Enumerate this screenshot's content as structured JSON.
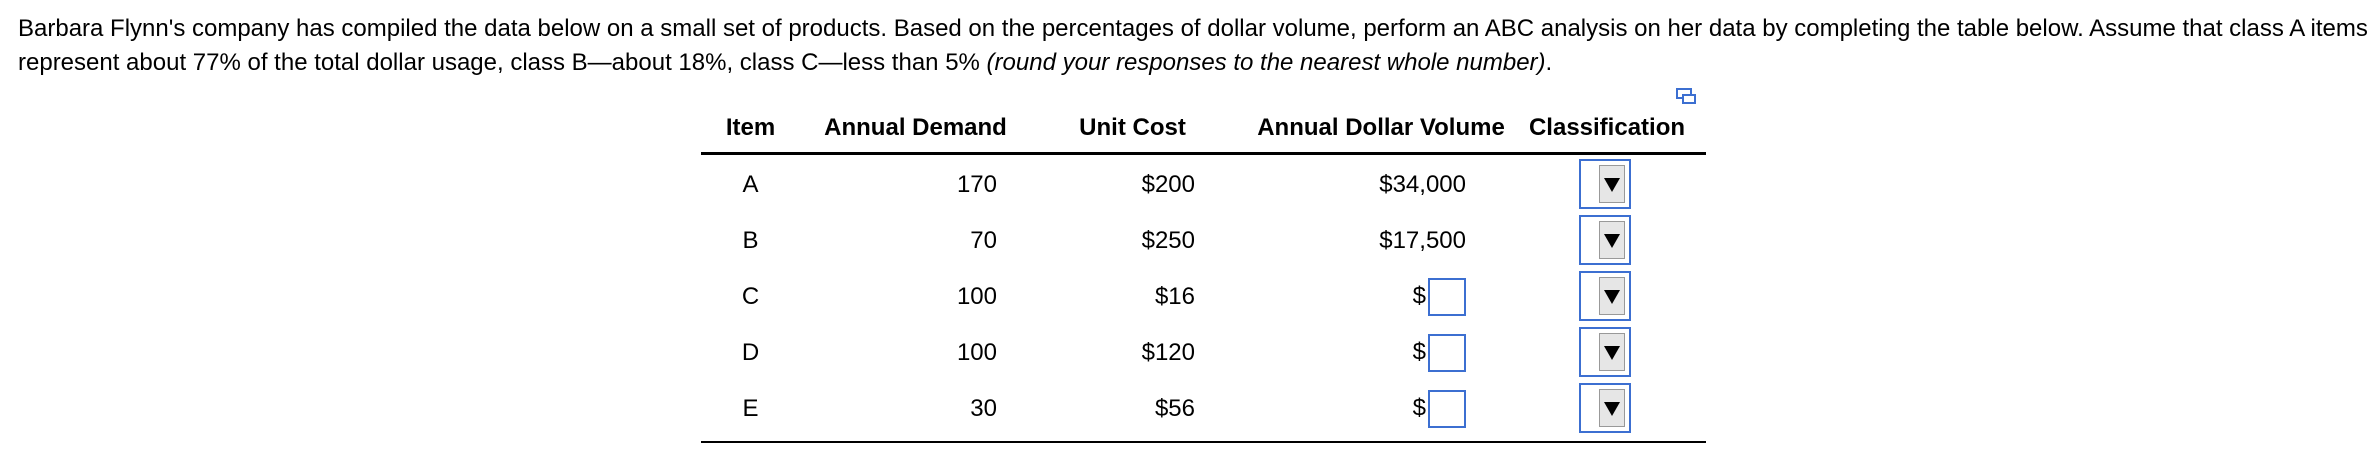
{
  "prompt": {
    "text": "Barbara Flynn's company has compiled the data below on a small set of products. Based on the percentages of dollar volume, perform an ABC analysis on her data by completing the table below. Assume that class A items represent about 77% of the total dollar usage, class B—about 18%, class C—less than 5% ",
    "italic": "(round your responses to the nearest whole number)",
    "end": "."
  },
  "table": {
    "headers": [
      "Item",
      "Annual Demand",
      "Unit Cost",
      "Annual Dollar Volume",
      "Classification"
    ],
    "rows": [
      [
        "A",
        "170",
        "$200",
        "$34,000"
      ],
      [
        "B",
        "70",
        "$250",
        "$17,500"
      ],
      [
        "C",
        "100",
        "$16",
        "$"
      ],
      [
        "D",
        "100",
        "$120",
        "$"
      ],
      [
        "E",
        "30",
        "$56",
        "$"
      ]
    ]
  }
}
